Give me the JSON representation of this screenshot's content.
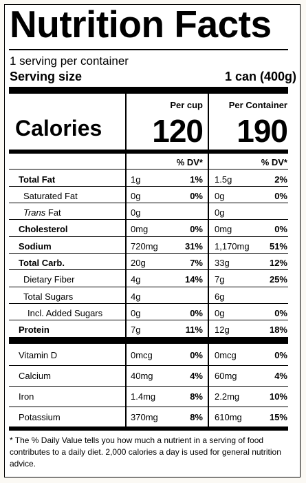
{
  "title": "Nutrition Facts",
  "servings_per_container": "1 serving per container",
  "serving_size_label": "Serving size",
  "serving_size_value": "1 can (400g)",
  "calories_label": "Calories",
  "columns": {
    "per_cup": "Per cup",
    "per_container": "Per Container",
    "dv_header": "% DV*"
  },
  "calories": {
    "per_cup": "120",
    "per_container": "190"
  },
  "nutrients": [
    {
      "name": "Total Fat",
      "cup_amount": "1g",
      "cup_dv": "1%",
      "cont_amount": "1.5g",
      "cont_dv": "2%"
    },
    {
      "name": "Saturated Fat",
      "cup_amount": "0g",
      "cup_dv": "0%",
      "cont_amount": "0g",
      "cont_dv": "0%"
    },
    {
      "name_italic": "Trans",
      "name_rest": " Fat",
      "cup_amount": "0g",
      "cup_dv": "",
      "cont_amount": "0g",
      "cont_dv": ""
    },
    {
      "name": "Cholesterol",
      "cup_amount": "0mg",
      "cup_dv": "0%",
      "cont_amount": "0mg",
      "cont_dv": "0%"
    },
    {
      "name": "Sodium",
      "cup_amount": "720mg",
      "cup_dv": "31%",
      "cont_amount": "1,170mg",
      "cont_dv": "51%"
    },
    {
      "name": "Total Carb.",
      "cup_amount": "20g",
      "cup_dv": "7%",
      "cont_amount": "33g",
      "cont_dv": "12%"
    },
    {
      "name": "Dietary Fiber",
      "cup_amount": "4g",
      "cup_dv": "14%",
      "cont_amount": "7g",
      "cont_dv": "25%"
    },
    {
      "name": "Total Sugars",
      "cup_amount": "4g",
      "cup_dv": "",
      "cont_amount": "6g",
      "cont_dv": ""
    },
    {
      "name": "Incl. Added Sugars",
      "cup_amount": "0g",
      "cup_dv": "0%",
      "cont_amount": "0g",
      "cont_dv": "0%"
    },
    {
      "name": "Protein",
      "cup_amount": "7g",
      "cup_dv": "11%",
      "cont_amount": "12g",
      "cont_dv": "18%"
    }
  ],
  "vitamins": [
    {
      "name": "Vitamin D",
      "cup_amount": "0mcg",
      "cup_dv": "0%",
      "cont_amount": "0mcg",
      "cont_dv": "0%"
    },
    {
      "name": "Calcium",
      "cup_amount": "40mg",
      "cup_dv": "4%",
      "cont_amount": "60mg",
      "cont_dv": "4%"
    },
    {
      "name": "Iron",
      "cup_amount": "1.4mg",
      "cup_dv": "8%",
      "cont_amount": "2.2mg",
      "cont_dv": "10%"
    },
    {
      "name": "Potassium",
      "cup_amount": "370mg",
      "cup_dv": "8%",
      "cont_amount": "610mg",
      "cont_dv": "15%"
    }
  ],
  "footnote": "* The % Daily Value tells you how much a nutrient in a serving of food contributes to a daily diet. 2,000 calories a day is used for general nutrition advice."
}
